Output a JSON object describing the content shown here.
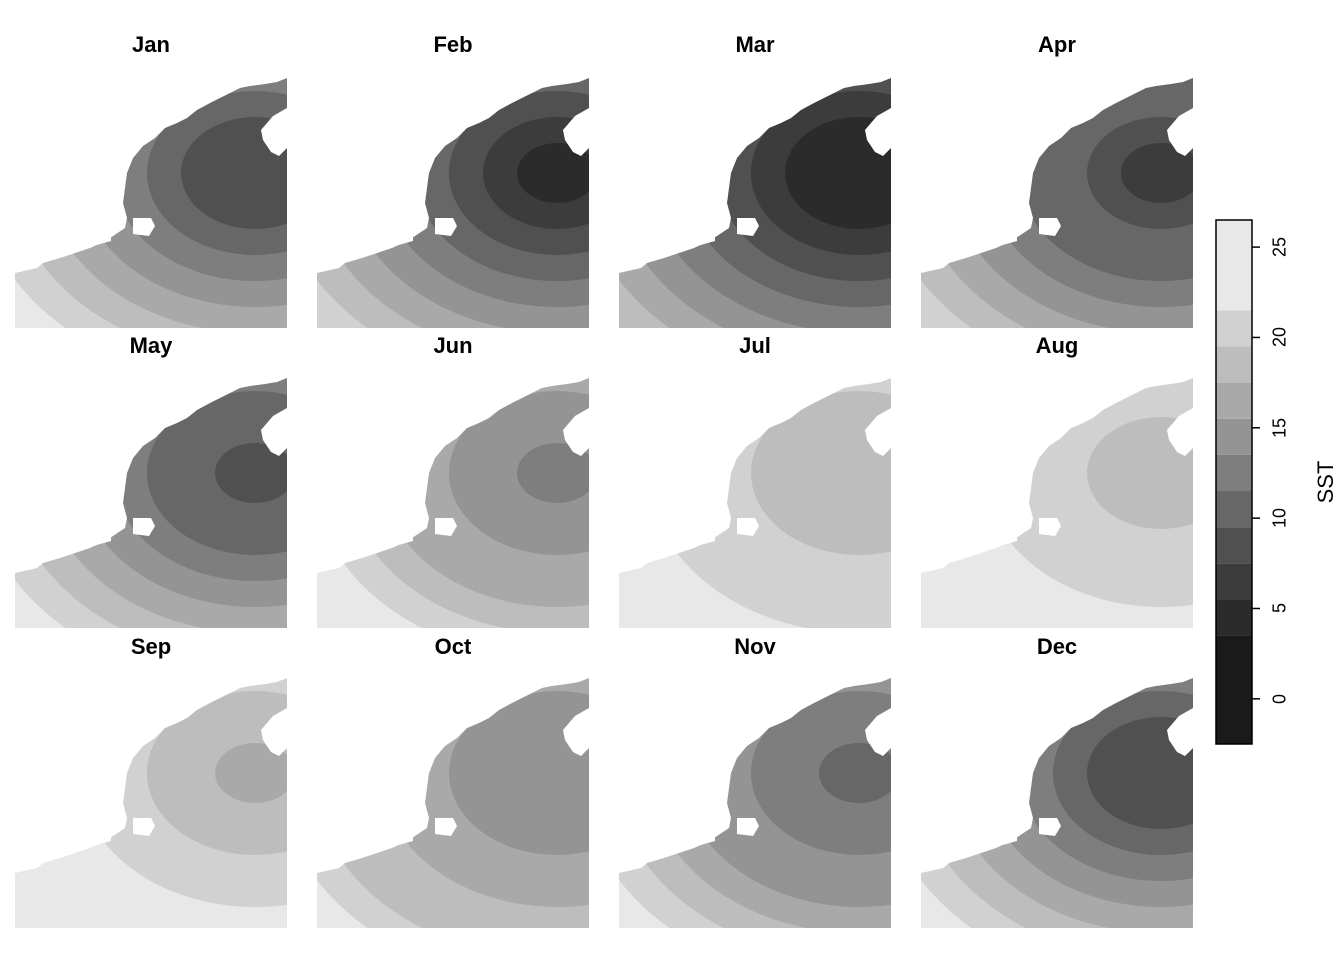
{
  "panels": [
    {
      "title": "Jan"
    },
    {
      "title": "Feb"
    },
    {
      "title": "Mar"
    },
    {
      "title": "Apr"
    },
    {
      "title": "May"
    },
    {
      "title": "Jun"
    },
    {
      "title": "Jul"
    },
    {
      "title": "Aug"
    },
    {
      "title": "Sep"
    },
    {
      "title": "Oct"
    },
    {
      "title": "Nov"
    },
    {
      "title": "Dec"
    }
  ],
  "legend": {
    "title": "SST",
    "range": [
      -2.5,
      26.5
    ],
    "ticks": [
      "0",
      "5",
      "10",
      "15",
      "20",
      "25"
    ],
    "tick_values": [
      0,
      5,
      10,
      15,
      20,
      25
    ],
    "bands": [
      {
        "from": -2.5,
        "to": 3.5,
        "color": "#1a1a1a"
      },
      {
        "from": 3.5,
        "to": 5.5,
        "color": "#2b2b2b"
      },
      {
        "from": 5.5,
        "to": 7.5,
        "color": "#3c3c3c"
      },
      {
        "from": 7.5,
        "to": 9.5,
        "color": "#505050"
      },
      {
        "from": 9.5,
        "to": 11.5,
        "color": "#676767"
      },
      {
        "from": 11.5,
        "to": 13.5,
        "color": "#7e7e7e"
      },
      {
        "from": 13.5,
        "to": 15.5,
        "color": "#949494"
      },
      {
        "from": 15.5,
        "to": 17.5,
        "color": "#a9a9a9"
      },
      {
        "from": 17.5,
        "to": 19.5,
        "color": "#bdbdbd"
      },
      {
        "from": 19.5,
        "to": 21.5,
        "color": "#d1d1d1"
      },
      {
        "from": 21.5,
        "to": 26.5,
        "color": "#e8e8e8"
      }
    ]
  },
  "land_color": "#ffffff"
}
